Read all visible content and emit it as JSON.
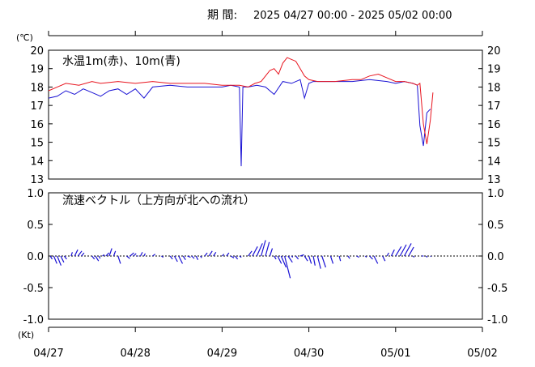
{
  "period": {
    "label": "期 間:",
    "range": "2025 04/27 00:00 - 2025 05/02 00:00"
  },
  "colors": {
    "red": "#e8141e",
    "blue": "#1a12d4",
    "axis": "#000000"
  },
  "chart_data": [
    {
      "type": "line",
      "title": "水温1m(赤)、10m(青)",
      "unit_label": "(℃)",
      "ylim": [
        13,
        20
      ],
      "yticks": [
        "20",
        "19",
        "18",
        "17",
        "16",
        "15",
        "14",
        "13"
      ],
      "x_days": [
        "04/27",
        "04/28",
        "04/29",
        "04/30",
        "05/01",
        "05/02"
      ],
      "series": [
        {
          "name": "1m",
          "color": "red",
          "x": [
            0.0,
            0.1,
            0.2,
            0.35,
            0.5,
            0.6,
            0.8,
            1.0,
            1.2,
            1.4,
            1.6,
            1.8,
            2.0,
            2.2,
            2.3,
            2.38,
            2.45,
            2.5,
            2.55,
            2.6,
            2.65,
            2.7,
            2.75,
            2.8,
            2.85,
            2.9,
            2.95,
            3.0,
            3.1,
            3.3,
            3.5,
            3.6,
            3.7,
            3.8,
            3.9,
            4.0,
            4.1,
            4.2,
            4.25,
            4.28,
            4.32,
            4.36,
            4.4,
            4.43
          ],
          "y": [
            17.8,
            18.0,
            18.2,
            18.1,
            18.3,
            18.2,
            18.3,
            18.2,
            18.3,
            18.2,
            18.2,
            18.2,
            18.1,
            18.1,
            18.0,
            18.2,
            18.3,
            18.6,
            18.9,
            19.0,
            18.7,
            19.3,
            19.6,
            19.5,
            19.4,
            19.0,
            18.6,
            18.4,
            18.3,
            18.3,
            18.4,
            18.4,
            18.6,
            18.7,
            18.5,
            18.3,
            18.3,
            18.2,
            18.1,
            18.2,
            16.0,
            14.9,
            16.2,
            17.7
          ]
        },
        {
          "name": "10m",
          "color": "blue",
          "x": [
            0.0,
            0.1,
            0.2,
            0.3,
            0.4,
            0.5,
            0.6,
            0.7,
            0.8,
            0.9,
            1.0,
            1.1,
            1.2,
            1.4,
            1.6,
            1.8,
            2.0,
            2.1,
            2.2,
            2.22,
            2.24,
            2.3,
            2.4,
            2.5,
            2.6,
            2.7,
            2.8,
            2.9,
            2.95,
            3.0,
            3.05,
            3.1,
            3.3,
            3.5,
            3.7,
            3.9,
            4.0,
            4.1,
            4.2,
            4.25,
            4.28,
            4.32,
            4.36,
            4.4
          ],
          "y": [
            17.4,
            17.5,
            17.8,
            17.6,
            17.9,
            17.7,
            17.5,
            17.8,
            17.9,
            17.6,
            17.9,
            17.4,
            18.0,
            18.1,
            18.0,
            18.0,
            18.0,
            18.1,
            18.0,
            13.7,
            18.0,
            18.0,
            18.1,
            18.0,
            17.6,
            18.3,
            18.2,
            18.4,
            17.4,
            18.2,
            18.3,
            18.3,
            18.3,
            18.3,
            18.4,
            18.3,
            18.2,
            18.3,
            18.2,
            18.1,
            15.9,
            14.8,
            16.6,
            16.8
          ]
        }
      ]
    },
    {
      "type": "vector",
      "title": "流速ベクトル（上方向が北への流れ）",
      "unit_label": "(Kt)",
      "ylim": [
        -1.0,
        1.0
      ],
      "yticks": [
        "1.0",
        "0.5",
        "0.0",
        "-0.5",
        "-1.0"
      ],
      "x_days": [
        "04/27",
        "04/28",
        "04/29",
        "04/30",
        "05/01",
        "05/02"
      ],
      "series": [
        {
          "name": "vector",
          "color": "blue",
          "x": [
            0.02,
            0.06,
            0.1,
            0.14,
            0.18,
            0.22,
            0.26,
            0.3,
            0.34,
            0.38,
            0.5,
            0.54,
            0.58,
            0.62,
            0.66,
            0.7,
            0.75,
            0.8,
            0.9,
            0.94,
            0.98,
            1.02,
            1.06,
            1.1,
            1.2,
            1.3,
            1.4,
            1.45,
            1.5,
            1.55,
            1.6,
            1.65,
            1.7,
            1.75,
            1.8,
            1.85,
            1.9,
            2.0,
            2.05,
            2.1,
            2.15,
            2.2,
            2.3,
            2.35,
            2.4,
            2.45,
            2.5,
            2.55,
            2.6,
            2.64,
            2.68,
            2.72,
            2.76,
            2.8,
            2.85,
            2.9,
            2.95,
            3.0,
            3.05,
            3.1,
            3.15,
            3.25,
            3.35,
            3.45,
            3.55,
            3.65,
            3.7,
            3.75,
            3.85,
            3.9,
            3.95,
            4.0,
            4.05,
            4.1,
            4.15,
            4.2,
            4.3,
            4.35,
            4.4
          ],
          "u": [
            0.03,
            0.05,
            0.06,
            0.05,
            0.04,
            0.0,
            0.02,
            0.05,
            0.06,
            0.04,
            0.04,
            0.05,
            0.02,
            0.03,
            0.05,
            0.04,
            0.03,
            0.04,
            0.05,
            0.06,
            0.04,
            0.02,
            0.03,
            0.02,
            0.04,
            0.03,
            0.04,
            0.05,
            0.06,
            0.04,
            0.05,
            0.04,
            0.03,
            0.02,
            0.04,
            0.05,
            0.04,
            0.03,
            0.04,
            0.05,
            0.04,
            0.03,
            0.06,
            0.08,
            0.09,
            0.07,
            0.06,
            0.04,
            0.03,
            0.06,
            0.08,
            0.09,
            0.07,
            0.02,
            0.04,
            0.06,
            0.05,
            0.04,
            0.03,
            0.05,
            0.06,
            0.04,
            0.02,
            0.03,
            0.04,
            0.02,
            0.05,
            0.06,
            0.04,
            0.03,
            0.05,
            0.09,
            0.1,
            0.11,
            0.08,
            0.02,
            0.03,
            0.02,
            0.01
          ],
          "v": [
            -0.05,
            -0.12,
            -0.15,
            -0.1,
            -0.05,
            0.0,
            0.06,
            0.1,
            0.08,
            0.05,
            -0.05,
            -0.08,
            -0.04,
            0.02,
            0.05,
            0.12,
            0.08,
            -0.12,
            -0.04,
            0.05,
            0.04,
            0.0,
            0.06,
            0.04,
            0.03,
            -0.02,
            -0.05,
            -0.09,
            -0.12,
            -0.06,
            -0.02,
            -0.04,
            -0.06,
            -0.03,
            0.05,
            0.08,
            0.06,
            0.03,
            0.05,
            -0.03,
            -0.05,
            -0.02,
            0.08,
            0.15,
            0.2,
            0.25,
            0.22,
            0.12,
            -0.05,
            -0.12,
            -0.18,
            -0.35,
            -0.1,
            -0.02,
            -0.05,
            0.02,
            -0.08,
            -0.12,
            -0.15,
            -0.2,
            -0.18,
            -0.12,
            -0.08,
            -0.04,
            -0.02,
            -0.02,
            -0.05,
            -0.12,
            -0.08,
            0.05,
            0.1,
            0.15,
            0.18,
            0.2,
            0.14,
            -0.02,
            0.0,
            -0.02,
            -0.01
          ]
        }
      ]
    }
  ]
}
